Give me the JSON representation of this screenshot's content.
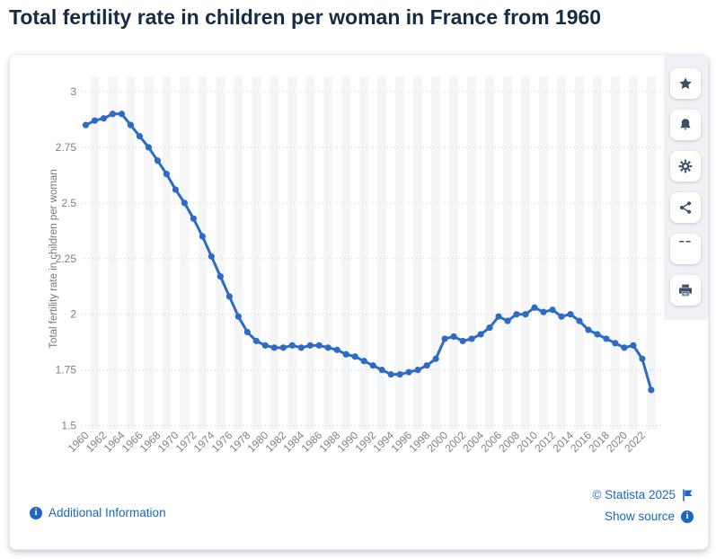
{
  "title": "Total fertility rate in children per woman in France from 1960",
  "chart_data": {
    "type": "line",
    "title": "Total fertility rate in children per woman in France from 1960",
    "xlabel": "",
    "ylabel": "Total fertility rate in children per woman",
    "ylim": [
      1.5,
      3
    ],
    "yticks": [
      "3",
      "2.75",
      "2.5",
      "2.25",
      "2",
      "1.75",
      "1.5"
    ],
    "xtick_every": 2,
    "grid": "horizontal-dotted",
    "legend": "none",
    "line_color": "#2d6bc4",
    "band_color": "#f4f5f7",
    "grid_color": "#c9cdd3",
    "axis_text_color": "#7b828a",
    "years": [
      1960,
      1961,
      1962,
      1963,
      1964,
      1965,
      1966,
      1967,
      1968,
      1969,
      1970,
      1971,
      1972,
      1973,
      1974,
      1975,
      1976,
      1977,
      1978,
      1979,
      1980,
      1981,
      1982,
      1983,
      1984,
      1985,
      1986,
      1987,
      1988,
      1989,
      1990,
      1991,
      1992,
      1993,
      1994,
      1995,
      1996,
      1997,
      1998,
      1999,
      2000,
      2001,
      2002,
      2003,
      2004,
      2005,
      2006,
      2007,
      2008,
      2009,
      2010,
      2011,
      2012,
      2013,
      2014,
      2015,
      2016,
      2017,
      2018,
      2019,
      2020,
      2021,
      2022,
      2023
    ],
    "values": [
      2.85,
      2.87,
      2.88,
      2.9,
      2.9,
      2.85,
      2.8,
      2.75,
      2.69,
      2.63,
      2.56,
      2.5,
      2.43,
      2.35,
      2.26,
      2.17,
      2.08,
      1.99,
      1.92,
      1.88,
      1.86,
      1.85,
      1.85,
      1.86,
      1.85,
      1.86,
      1.86,
      1.85,
      1.84,
      1.82,
      1.81,
      1.79,
      1.77,
      1.75,
      1.73,
      1.73,
      1.74,
      1.75,
      1.77,
      1.8,
      1.89,
      1.9,
      1.88,
      1.89,
      1.91,
      1.94,
      1.99,
      1.97,
      2.0,
      2.0,
      2.03,
      2.01,
      2.02,
      1.99,
      2.0,
      1.97,
      1.93,
      1.91,
      1.89,
      1.87,
      1.85,
      1.86,
      1.8,
      1.66
    ]
  },
  "sidebar": {
    "buttons": [
      {
        "id": "favorite",
        "icon": "star-icon"
      },
      {
        "id": "alerts",
        "icon": "bell-icon"
      },
      {
        "id": "settings",
        "icon": "gear-icon"
      },
      {
        "id": "share",
        "icon": "share-icon"
      },
      {
        "id": "cite",
        "icon": "quote-icon"
      },
      {
        "id": "print",
        "icon": "printer-icon"
      }
    ]
  },
  "footer": {
    "additional_info_label": "Additional Information",
    "copyright_label": "© Statista 2025",
    "show_source_label": "Show source"
  }
}
